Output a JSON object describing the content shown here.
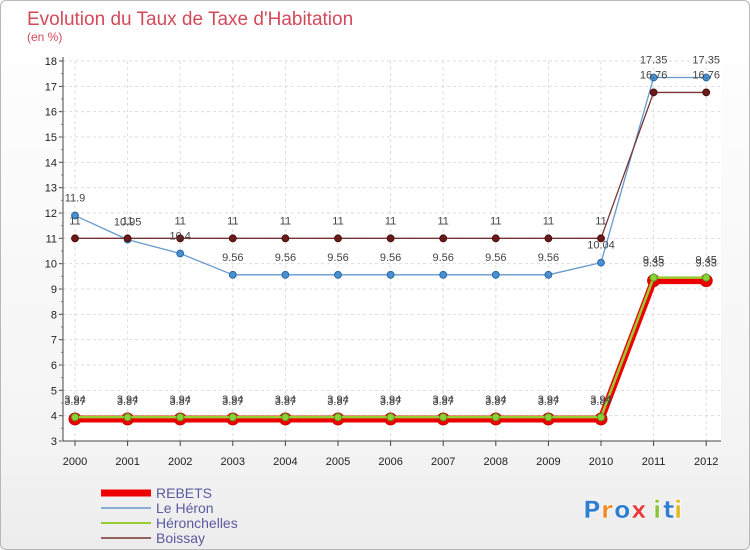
{
  "chart_data": {
    "type": "line",
    "title": "Evolution du Taux de Taxe d'Habitation",
    "subtitle": "(en %)",
    "x": [
      "2000",
      "2001",
      "2002",
      "2003",
      "2004",
      "2005",
      "2006",
      "2007",
      "2008",
      "2009",
      "2010",
      "2011",
      "2012"
    ],
    "ylim": [
      3,
      18
    ],
    "yticks": [
      3,
      4,
      5,
      6,
      7,
      8,
      9,
      10,
      11,
      12,
      13,
      14,
      15,
      16,
      17,
      18
    ],
    "grid": true,
    "legend_position": "bottom-left",
    "series": [
      {
        "name": "REBETS",
        "color": "#ee0000",
        "values": [
          3.87,
          3.87,
          3.87,
          3.87,
          3.87,
          3.87,
          3.87,
          3.87,
          3.87,
          3.87,
          3.87,
          9.33,
          9.33
        ],
        "labels": [
          "3.87",
          "3.87",
          "3.87",
          "3.87",
          "3.87",
          "3.87",
          "3.87",
          "3.87",
          "3.87",
          "3.87",
          "3.87",
          "9.33",
          "9.33"
        ]
      },
      {
        "name": "Le Héron",
        "color": "#6699cc",
        "values": [
          11.9,
          10.95,
          10.4,
          9.56,
          9.56,
          9.56,
          9.56,
          9.56,
          9.56,
          9.56,
          10.04,
          17.35,
          17.35
        ],
        "labels": [
          "11.9",
          "10.95",
          "10.4",
          "9.56",
          "9.56",
          "9.56",
          "9.56",
          "9.56",
          "9.56",
          "9.56",
          "10.04",
          "17.35",
          "17.35"
        ]
      },
      {
        "name": "Héronchelles",
        "color": "#99cc33",
        "values": [
          3.94,
          3.94,
          3.94,
          3.94,
          3.94,
          3.94,
          3.94,
          3.94,
          3.94,
          3.94,
          3.94,
          9.45,
          9.45
        ],
        "labels": [
          "3.94",
          "3.94",
          "3.94",
          "3.94",
          "3.94",
          "3.94",
          "3.94",
          "3.94",
          "3.94",
          "3.94",
          "3.94",
          "9.45",
          "9.45"
        ]
      },
      {
        "name": "Boissay",
        "color": "#773333",
        "values": [
          11,
          11,
          11,
          11,
          11,
          11,
          11,
          11,
          11,
          11,
          11,
          16.76,
          16.76
        ],
        "labels": [
          "11",
          "11",
          "11",
          "11",
          "11",
          "11",
          "11",
          "11",
          "11",
          "11",
          "11",
          "16.76",
          "16.76"
        ]
      }
    ]
  },
  "logo": {
    "text": "Proxiti"
  }
}
